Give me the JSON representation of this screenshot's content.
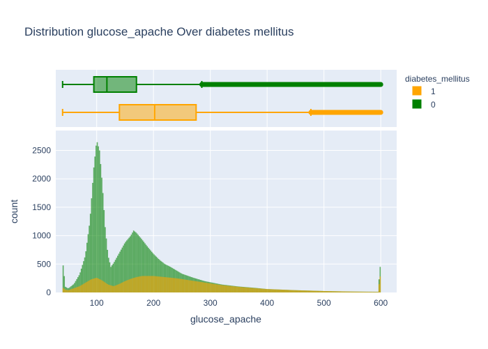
{
  "chart_data": {
    "type": "histogram",
    "title": "Distribution glucose_apache Over diabetes mellitus",
    "xlabel": "glucose_apache",
    "ylabel": "count",
    "xlim": [
      28,
      628
    ],
    "ylim": [
      0,
      2850
    ],
    "xticks": [
      100,
      200,
      300,
      400,
      500,
      600
    ],
    "yticks": [
      0,
      500,
      1000,
      1500,
      2000,
      2500
    ],
    "grid": true,
    "barmode": "overlay",
    "legend": {
      "title": "diabetes_mellitus",
      "placement": "top-right",
      "entries": [
        {
          "label": "1",
          "color": "#FFA500"
        },
        {
          "label": "0",
          "color": "#008000"
        }
      ]
    },
    "series": [
      {
        "name": "0",
        "color": "#008000",
        "points": [
          [
            40,
            570
          ],
          [
            45,
            100
          ],
          [
            50,
            70
          ],
          [
            60,
            150
          ],
          [
            70,
            320
          ],
          [
            80,
            650
          ],
          [
            88,
            1250
          ],
          [
            95,
            2200
          ],
          [
            100,
            2680
          ],
          [
            105,
            2500
          ],
          [
            110,
            1900
          ],
          [
            115,
            1150
          ],
          [
            120,
            650
          ],
          [
            125,
            450
          ],
          [
            130,
            520
          ],
          [
            140,
            700
          ],
          [
            150,
            880
          ],
          [
            160,
            1000
          ],
          [
            165,
            1090
          ],
          [
            170,
            1050
          ],
          [
            180,
            930
          ],
          [
            190,
            800
          ],
          [
            200,
            680
          ],
          [
            210,
            580
          ],
          [
            220,
            500
          ],
          [
            230,
            450
          ],
          [
            250,
            330
          ],
          [
            270,
            260
          ],
          [
            290,
            200
          ],
          [
            300,
            180
          ],
          [
            320,
            140
          ],
          [
            350,
            105
          ],
          [
            380,
            80
          ],
          [
            400,
            60
          ],
          [
            450,
            40
          ],
          [
            500,
            25
          ],
          [
            550,
            15
          ],
          [
            595,
            12
          ],
          [
            600,
            560
          ]
        ]
      },
      {
        "name": "1",
        "color": "#FFA500",
        "points": [
          [
            40,
            90
          ],
          [
            45,
            50
          ],
          [
            50,
            40
          ],
          [
            60,
            75
          ],
          [
            70,
            110
          ],
          [
            80,
            170
          ],
          [
            90,
            230
          ],
          [
            100,
            260
          ],
          [
            110,
            210
          ],
          [
            120,
            140
          ],
          [
            130,
            110
          ],
          [
            140,
            150
          ],
          [
            150,
            200
          ],
          [
            160,
            240
          ],
          [
            170,
            270
          ],
          [
            180,
            290
          ],
          [
            200,
            290
          ],
          [
            220,
            270
          ],
          [
            240,
            250
          ],
          [
            260,
            220
          ],
          [
            280,
            190
          ],
          [
            300,
            160
          ],
          [
            320,
            130
          ],
          [
            350,
            100
          ],
          [
            380,
            75
          ],
          [
            400,
            60
          ],
          [
            450,
            40
          ],
          [
            500,
            25
          ],
          [
            550,
            15
          ],
          [
            595,
            10
          ],
          [
            600,
            350
          ]
        ]
      }
    ],
    "boxes": [
      {
        "name": "0",
        "color": "#008000",
        "min": 40,
        "q1": 95,
        "median": 118,
        "q3": 170,
        "upper_fence": 285,
        "outliers_to": 600
      },
      {
        "name": "1",
        "color": "#FFA500",
        "min": 40,
        "q1": 140,
        "median": 202,
        "q3": 275,
        "upper_fence": 477,
        "outliers_to": 600
      }
    ]
  }
}
